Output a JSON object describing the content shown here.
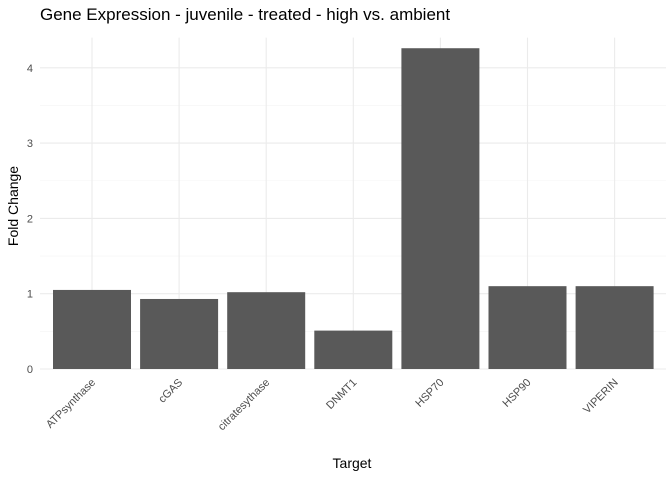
{
  "chart_data": {
    "type": "bar",
    "title": "Gene Expression - juvenile - treated - high vs. ambient",
    "xlabel": "Target",
    "ylabel": "Fold Change",
    "categories": [
      "ATPsynthase",
      "cGAS",
      "citratesythase",
      "DNMT1",
      "HSP70",
      "HSP90",
      "VIPERIN"
    ],
    "values": [
      1.05,
      0.93,
      1.02,
      0.51,
      4.26,
      1.1,
      1.1
    ],
    "yticks": [
      "0",
      "1",
      "2",
      "3",
      "4"
    ],
    "ylim": [
      0,
      4.4
    ],
    "grid": true,
    "legend": "none",
    "bar_color": "#595959"
  }
}
